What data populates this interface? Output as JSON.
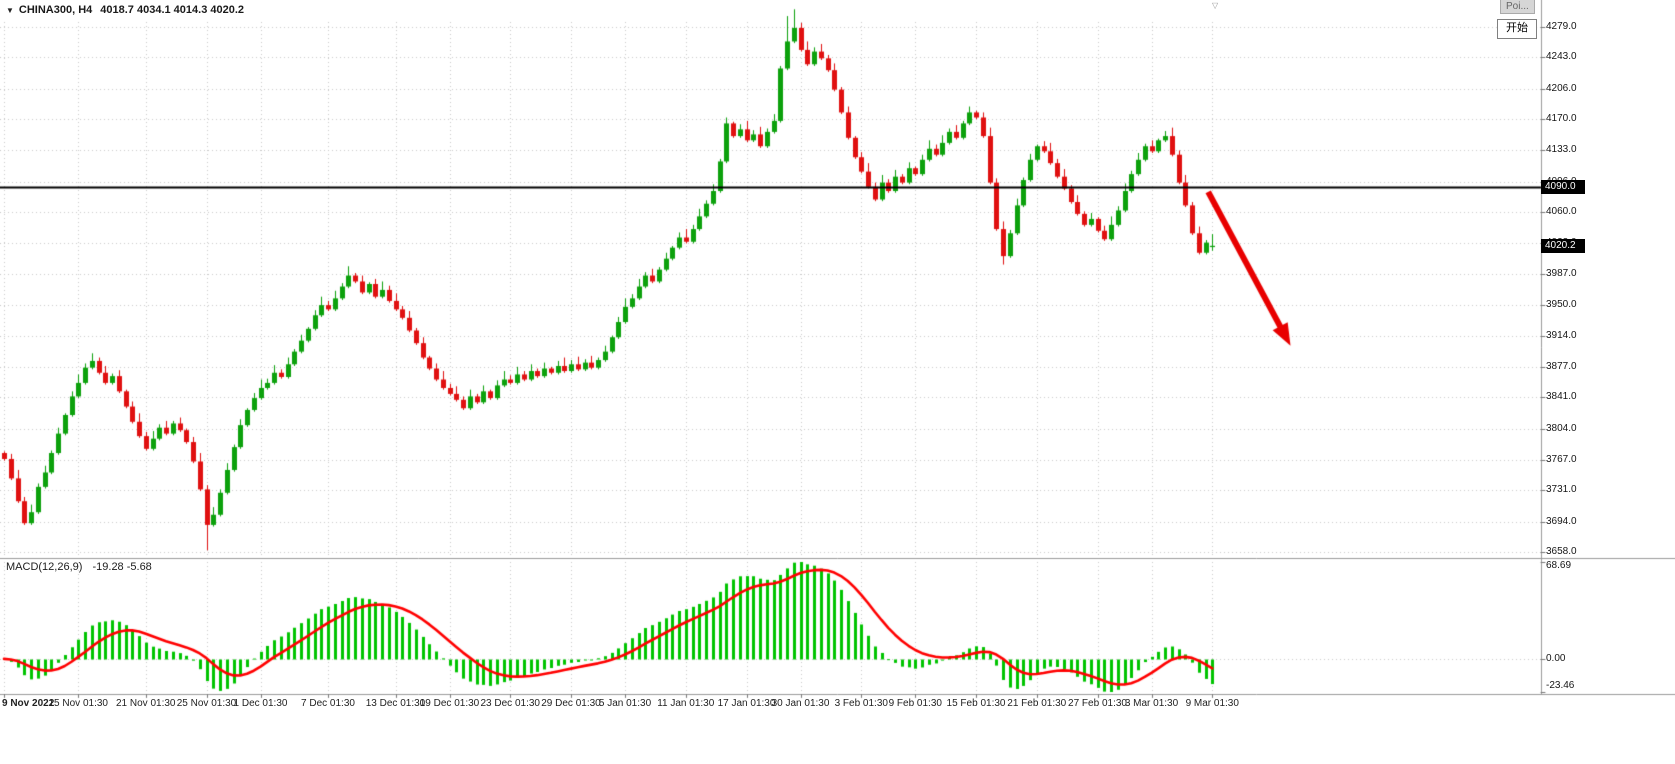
{
  "title": {
    "symbol": "CHINA300, H4",
    "ohlc": "4018.7 4034.1 4014.3 4020.2"
  },
  "overlay": {
    "tooltip_text": "Poi...",
    "start_button_label": "开始"
  },
  "macd_label": {
    "name": "MACD(12,26,9)",
    "values": "-19.28 -5.68"
  },
  "colors": {
    "up": "#0CA10C",
    "down": "#E01010",
    "macd_hist": "#00C400",
    "macd_signal": "#FF0000",
    "grid": "#C8C8C8",
    "hline": "#000000",
    "arrow": "#E80000",
    "axis_border": "#9A9A9A",
    "tick": "#777777"
  },
  "chart_data": {
    "type": "candlestick",
    "symbol": "CHINA300",
    "timeframe": "H4",
    "current_bar": {
      "open": 4018.7,
      "high": 4034.1,
      "low": 4014.3,
      "close": 4020.2
    },
    "ylim": [
      3652,
      4285
    ],
    "price_axis_ticks": [
      4279.0,
      4243.0,
      4206.0,
      4170.0,
      4133.0,
      4096.0,
      4060.0,
      4023.0,
      3987.0,
      3950.0,
      3914.0,
      3877.0,
      3841.0,
      3804.0,
      3767.0,
      3731.0,
      3694.0,
      3658.0
    ],
    "time_axis": [
      {
        "label": "9 Nov 2022",
        "bar": 0
      },
      {
        "label": "15 Nov 01:30",
        "bar": 11
      },
      {
        "label": "21 Nov 01:30",
        "bar": 21
      },
      {
        "label": "25 Nov 01:30",
        "bar": 30
      },
      {
        "label": "1 Dec 01:30",
        "bar": 38
      },
      {
        "label": "7 Dec 01:30",
        "bar": 48
      },
      {
        "label": "13 Dec 01:30",
        "bar": 58
      },
      {
        "label": "19 Dec 01:30",
        "bar": 66
      },
      {
        "label": "23 Dec 01:30",
        "bar": 75
      },
      {
        "label": "29 Dec 01:30",
        "bar": 84
      },
      {
        "label": "5 Jan 01:30",
        "bar": 92
      },
      {
        "label": "11 Jan 01:30",
        "bar": 101
      },
      {
        "label": "17 Jan 01:30",
        "bar": 110
      },
      {
        "label": "30 Jan 01:30",
        "bar": 118
      },
      {
        "label": "3 Feb 01:30",
        "bar": 127
      },
      {
        "label": "9 Feb 01:30",
        "bar": 135
      },
      {
        "label": "15 Feb 01:30",
        "bar": 144
      },
      {
        "label": "21 Feb 01:30",
        "bar": 153
      },
      {
        "label": "27 Feb 01:30",
        "bar": 162
      },
      {
        "label": "3 Mar 01:30",
        "bar": 170
      },
      {
        "label": "9 Mar 01:30",
        "bar": 179
      }
    ],
    "closes": [
      3768,
      3745,
      3718,
      3692,
      3705,
      3735,
      3752,
      3775,
      3798,
      3820,
      3842,
      3858,
      3876,
      3884,
      3870,
      3858,
      3866,
      3848,
      3830,
      3812,
      3795,
      3780,
      3792,
      3805,
      3798,
      3810,
      3802,
      3788,
      3765,
      3732,
      3690,
      3702,
      3728,
      3755,
      3782,
      3808,
      3826,
      3840,
      3852,
      3858,
      3870,
      3865,
      3880,
      3895,
      3908,
      3922,
      3938,
      3950,
      3945,
      3958,
      3972,
      3985,
      3978,
      3965,
      3975,
      3960,
      3968,
      3955,
      3945,
      3935,
      3920,
      3905,
      3888,
      3875,
      3862,
      3852,
      3845,
      3838,
      3828,
      3842,
      3835,
      3848,
      3840,
      3855,
      3862,
      3858,
      3868,
      3862,
      3872,
      3866,
      3875,
      3870,
      3878,
      3872,
      3880,
      3874,
      3882,
      3876,
      3885,
      3895,
      3912,
      3930,
      3948,
      3958,
      3972,
      3985,
      3978,
      3992,
      4005,
      4018,
      4030,
      4025,
      4040,
      4055,
      4070,
      4085,
      4120,
      4165,
      4150,
      4158,
      4145,
      4152,
      4138,
      4155,
      4168,
      4230,
      4262,
      4278,
      4252,
      4235,
      4250,
      4242,
      4228,
      4205,
      4178,
      4148,
      4125,
      4108,
      4090,
      4075,
      4095,
      4085,
      4102,
      4095,
      4112,
      4105,
      4122,
      4135,
      4128,
      4142,
      4155,
      4148,
      4165,
      4178,
      4172,
      4150,
      4095,
      4040,
      4008,
      4035,
      4068,
      4098,
      4122,
      4138,
      4132,
      4118,
      4102,
      4088,
      4072,
      4058,
      4045,
      4052,
      4038,
      4028,
      4045,
      4062,
      4085,
      4105,
      4122,
      4138,
      4132,
      4145,
      4150,
      4128,
      4095,
      4068,
      4035,
      4012,
      4024,
      4020.2
    ],
    "bar_overrides": {
      "0": {
        "open": 3775
      },
      "30": {
        "low": 3660
      },
      "51": {
        "high": 3996
      },
      "116": {
        "high": 4292
      },
      "117": {
        "high": 4300
      },
      "148": {
        "low": 3998
      },
      "179": {
        "open": 4018.7,
        "high": 4034.1,
        "low": 4014.3
      }
    },
    "horizontal_line": {
      "price": 4090.0,
      "label": "4090.0"
    },
    "price_tag": {
      "price": 4020.2,
      "label": "4020.2"
    },
    "macd": {
      "params": [
        12,
        26,
        9
      ],
      "axis_max": 68.69,
      "axis_min": -23.46,
      "axis_ticks": [
        {
          "v": 68.69,
          "label": "68.69"
        },
        {
          "v": 0,
          "label": "0.00"
        },
        {
          "v": -23.46,
          "label": "-23.46"
        }
      ],
      "display_values": [
        -19.28,
        -5.68
      ]
    },
    "annotation_arrow": {
      "start": {
        "bar": 178.4,
        "price": 4084
      },
      "end": {
        "bar": 190.6,
        "price": 3902
      }
    }
  }
}
